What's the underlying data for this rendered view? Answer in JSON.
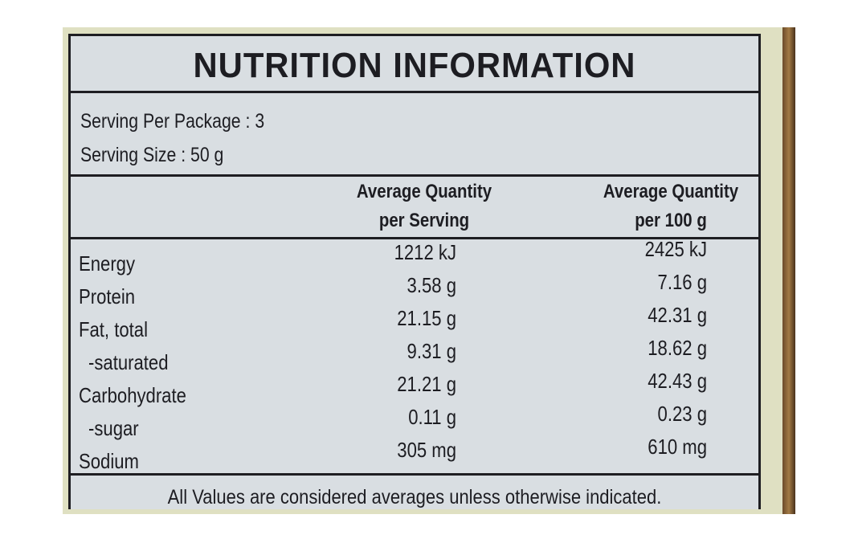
{
  "title": "NUTRITION INFORMATION",
  "serving": [
    "Serving Per Package : 3",
    "Serving Size : 50 g"
  ],
  "table": {
    "headers": [
      [
        "Average Quantity",
        "per Serving"
      ],
      [
        "Average Quantity",
        "per 100 g"
      ]
    ],
    "rows": [
      [
        "Energy",
        "1212 kJ",
        "2425 kJ"
      ],
      [
        "Protein",
        "3.58 g",
        "7.16 g"
      ],
      [
        "Fat, total",
        "21.15 g",
        "42.31 g"
      ],
      [
        "-saturated",
        "9.31 g",
        "18.62 g"
      ],
      [
        "Carbohydrate",
        "21.21 g",
        "42.43 g"
      ],
      [
        "-sugar",
        "0.11 g",
        "0.23 g"
      ],
      [
        "Sodium",
        "305 mg",
        "610 mg"
      ]
    ]
  },
  "footer": "All Values are considered averages unless otherwise indicated."
}
